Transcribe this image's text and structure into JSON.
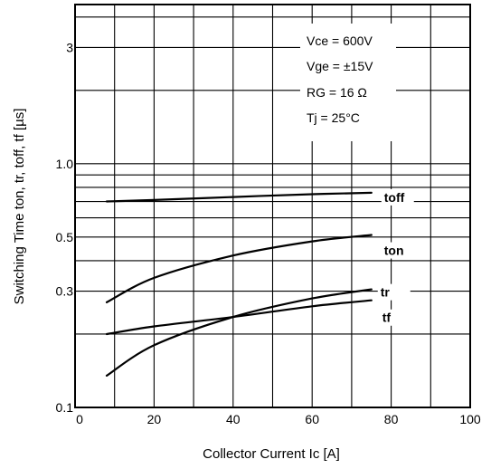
{
  "chart_data": {
    "type": "line",
    "title": "",
    "xlabel": "Collector Current Ic [A]",
    "ylabel": "Switching Time ton, tr, toff, tf [µs]",
    "xscale": "linear",
    "yscale": "log",
    "xlim": [
      0,
      100
    ],
    "ylim": [
      0.1,
      4.5
    ],
    "grid": true,
    "x_ticks": [
      "0",
      "20",
      "40",
      "60",
      "80",
      "100"
    ],
    "y_ticks": [
      {
        "value": 0.1,
        "label": "0.1"
      },
      {
        "value": 0.3,
        "label": "0.3"
      },
      {
        "value": 0.5,
        "label": "0.5"
      },
      {
        "value": 1.0,
        "label": "1.0"
      },
      {
        "value": 3,
        "label": "3"
      }
    ],
    "conditions": [
      "Vce = 600V",
      "Vge = ±15V",
      "RG = 16 Ω",
      "Tj = 25°C"
    ],
    "series": [
      {
        "name": "toff",
        "x": [
          8,
          20,
          40,
          60,
          75
        ],
        "y": [
          0.7,
          0.71,
          0.73,
          0.75,
          0.76
        ]
      },
      {
        "name": "ton",
        "x": [
          8,
          20,
          40,
          60,
          75
        ],
        "y": [
          0.27,
          0.34,
          0.42,
          0.48,
          0.51
        ]
      },
      {
        "name": "tr",
        "x": [
          8,
          20,
          40,
          60,
          75
        ],
        "y": [
          0.135,
          0.18,
          0.235,
          0.28,
          0.305
        ]
      },
      {
        "name": "tf",
        "x": [
          8,
          20,
          40,
          60,
          75
        ],
        "y": [
          0.2,
          0.215,
          0.235,
          0.26,
          0.275
        ]
      }
    ]
  }
}
